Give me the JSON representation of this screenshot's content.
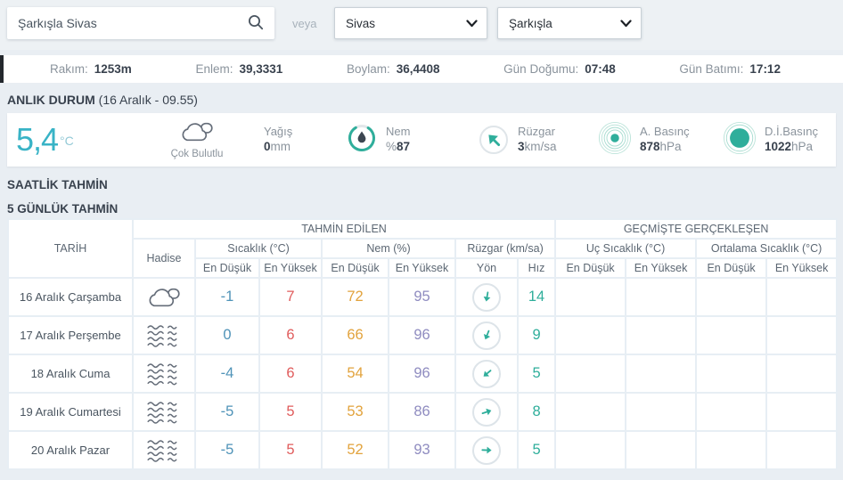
{
  "search": {
    "query": "Şarkışla Sivas",
    "or_label": "veya",
    "province": "Sivas",
    "district": "Şarkışla"
  },
  "info_bar": {
    "items": [
      {
        "label": "Rakım:",
        "value": "1253m"
      },
      {
        "label": "Enlem:",
        "value": "39,3331"
      },
      {
        "label": "Boylam:",
        "value": "36,4408"
      },
      {
        "label": "Gün Doğumu:",
        "value": "07:48"
      },
      {
        "label": "Gün Batımı:",
        "value": "17:12"
      }
    ]
  },
  "current": {
    "section_title": "ANLIK DURUM",
    "section_datetime": "(16 Aralık - 09.55)",
    "temperature": "5,4",
    "temperature_unit": "°C",
    "condition": "Çok Bulutlu",
    "condition_icon": "mostly-cloudy",
    "precipitation": {
      "label": "Yağış",
      "value": "0",
      "unit": "mm"
    },
    "humidity": {
      "label": "Nem",
      "prefix": "%",
      "value": "87",
      "icon": "humidity-gauge"
    },
    "wind": {
      "label": "Rüzgar",
      "value": "3",
      "unit": "km/sa",
      "icon": "wind-direction",
      "dir_deg": -135
    },
    "pressure_station": {
      "label": "A. Basınç",
      "value": "878",
      "unit": "hPa",
      "icon": "pressure-actual"
    },
    "pressure_sea": {
      "label": "D.İ.Basınç",
      "value": "1022",
      "unit": "hPa",
      "icon": "pressure-sea"
    }
  },
  "sections": {
    "hourly": "SAATLİK TAHMİN",
    "daily": "5 GÜNLÜK TAHMİN"
  },
  "forecast_table": {
    "header": {
      "date": "TARİH",
      "event": "Hadise",
      "predicted": "TAHMİN EDİLEN",
      "past": "GEÇMİŞTE GERÇEKLEŞEN",
      "temp_group": "Sıcaklık (°C)",
      "hum_group": "Nem (%)",
      "wind_group": "Rüzgar (km/sa)",
      "extreme_group": "Uç Sıcaklık (°C)",
      "avg_group": "Ortalama Sıcaklık (°C)",
      "min": "En Düşük",
      "max": "En Yüksek",
      "dir": "Yön",
      "speed": "Hız"
    },
    "rows": [
      {
        "date": "16 Aralık Çarşamba",
        "icon": "mostly-cloudy",
        "temp_min": "-1",
        "temp_max": "7",
        "hum_min": "72",
        "hum_max": "95",
        "wind_dir_deg": 100,
        "wind_speed": "14",
        "past": [
          "",
          "",
          "",
          ""
        ]
      },
      {
        "date": "17 Aralık Perşembe",
        "icon": "fog",
        "temp_min": "0",
        "temp_max": "6",
        "hum_min": "66",
        "hum_max": "96",
        "wind_dir_deg": 112,
        "wind_speed": "9",
        "past": [
          "",
          "",
          "",
          ""
        ]
      },
      {
        "date": "18 Aralık Cuma",
        "icon": "fog",
        "temp_min": "-4",
        "temp_max": "6",
        "hum_min": "54",
        "hum_max": "96",
        "wind_dir_deg": 140,
        "wind_speed": "5",
        "past": [
          "",
          "",
          "",
          ""
        ]
      },
      {
        "date": "19 Aralık Cumartesi",
        "icon": "fog",
        "temp_min": "-5",
        "temp_max": "5",
        "hum_min": "53",
        "hum_max": "86",
        "wind_dir_deg": -18,
        "wind_speed": "8",
        "past": [
          "",
          "",
          "",
          ""
        ]
      },
      {
        "date": "20 Aralık Pazar",
        "icon": "fog",
        "temp_min": "-5",
        "temp_max": "5",
        "hum_min": "52",
        "hum_max": "93",
        "wind_dir_deg": 2,
        "wind_speed": "5",
        "past": [
          "",
          "",
          "",
          ""
        ]
      }
    ]
  },
  "colors": {
    "accent_teal": "#2fae9b",
    "temperature_cyan": "#38b3c6",
    "min_blue": "#4f93b8",
    "max_red": "#e05c5c",
    "humidity_min_orange": "#e2a33d",
    "humidity_max_purple": "#8f8cc0",
    "dark_text": "#39424e"
  }
}
